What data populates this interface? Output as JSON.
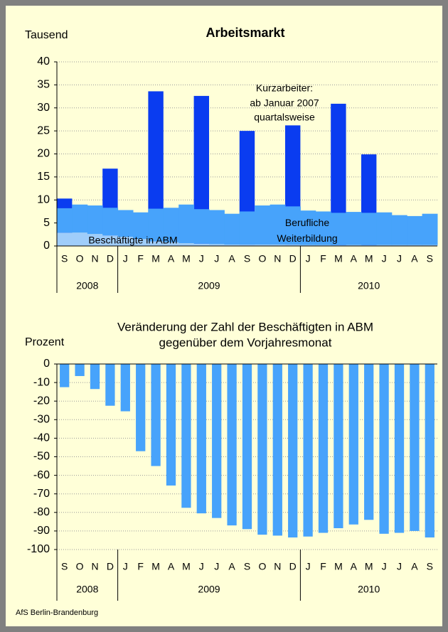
{
  "chart_data": [
    {
      "type": "bar",
      "title": "Arbeitsmarkt",
      "y_label": "Tausend",
      "categories": [
        "S",
        "O",
        "N",
        "D",
        "J",
        "F",
        "M",
        "A",
        "M",
        "J",
        "J",
        "A",
        "S",
        "O",
        "N",
        "D",
        "J",
        "F",
        "M",
        "A",
        "M",
        "J",
        "J",
        "A",
        "S"
      ],
      "category_groups": [
        {
          "label": "2008",
          "count": 4
        },
        {
          "label": "2009",
          "count": 12
        },
        {
          "label": "2010",
          "count": 9
        }
      ],
      "ylim": [
        0,
        40
      ],
      "yticks": [
        0,
        5,
        10,
        15,
        20,
        25,
        30,
        35,
        40
      ],
      "grid": true,
      "series": [
        {
          "name": "Kurzarbeiter:",
          "type": "bar",
          "color": "#0a3cf0",
          "annotation": [
            "ab Januar 2007",
            "quartalsweise"
          ],
          "values": [
            10.3,
            null,
            null,
            16.8,
            null,
            null,
            33.6,
            null,
            null,
            32.6,
            null,
            null,
            25.0,
            null,
            null,
            26.2,
            null,
            null,
            30.9,
            null,
            19.9,
            null,
            null,
            null,
            null
          ]
        },
        {
          "name": "Beschäftigte in ABM",
          "type": "area",
          "color": "#9fcdfa",
          "values": [
            2.9,
            2.9,
            2.6,
            2.3,
            2.0,
            1.5,
            1.0,
            0.8,
            0.6,
            0.5,
            0.4,
            0.3,
            0.3,
            0.3,
            0.3,
            0.3,
            0.2,
            0.2,
            0.2,
            0.2,
            0.2,
            0.2,
            0.2,
            0.2,
            0.2
          ]
        },
        {
          "name": "Berufliche Weiterbildung",
          "type": "area",
          "color": "#47a3fb",
          "values": [
            5.3,
            6.1,
            6.2,
            6.0,
            5.8,
            5.8,
            7.1,
            7.5,
            8.4,
            7.5,
            7.4,
            6.7,
            7.2,
            8.5,
            8.7,
            8.3,
            7.5,
            7.3,
            7.0,
            7.2,
            7.0,
            7.1,
            6.5,
            6.3,
            6.8
          ]
        }
      ]
    },
    {
      "type": "bar",
      "title": [
        "Veränderung der Zahl der Beschäftigten in ABM",
        "gegenüber dem Vorjahresmonat"
      ],
      "y_label": "Prozent",
      "categories": [
        "S",
        "O",
        "N",
        "D",
        "J",
        "F",
        "M",
        "A",
        "M",
        "J",
        "J",
        "A",
        "S",
        "O",
        "N",
        "D",
        "J",
        "F",
        "M",
        "A",
        "M",
        "J",
        "J",
        "A",
        "S"
      ],
      "category_groups": [
        {
          "label": "2008",
          "count": 4
        },
        {
          "label": "2009",
          "count": 12
        },
        {
          "label": "2010",
          "count": 9
        }
      ],
      "ylim": [
        -100,
        0
      ],
      "yticks": [
        0,
        -10,
        -20,
        -30,
        -40,
        -50,
        -60,
        -70,
        -80,
        -90,
        -100
      ],
      "grid": true,
      "color": "#47a3fb",
      "values": [
        -12.5,
        -6.5,
        -13.5,
        -22.5,
        -25.5,
        -47,
        -55,
        -65.5,
        -77.5,
        -80.5,
        -83,
        -87,
        -89,
        -92,
        -92.5,
        -93.5,
        -93,
        -91,
        -88.5,
        -86.5,
        -84,
        -91.5,
        -91,
        -90,
        -93.5
      ]
    }
  ],
  "footer": "AfS Berlin-Brandenburg"
}
